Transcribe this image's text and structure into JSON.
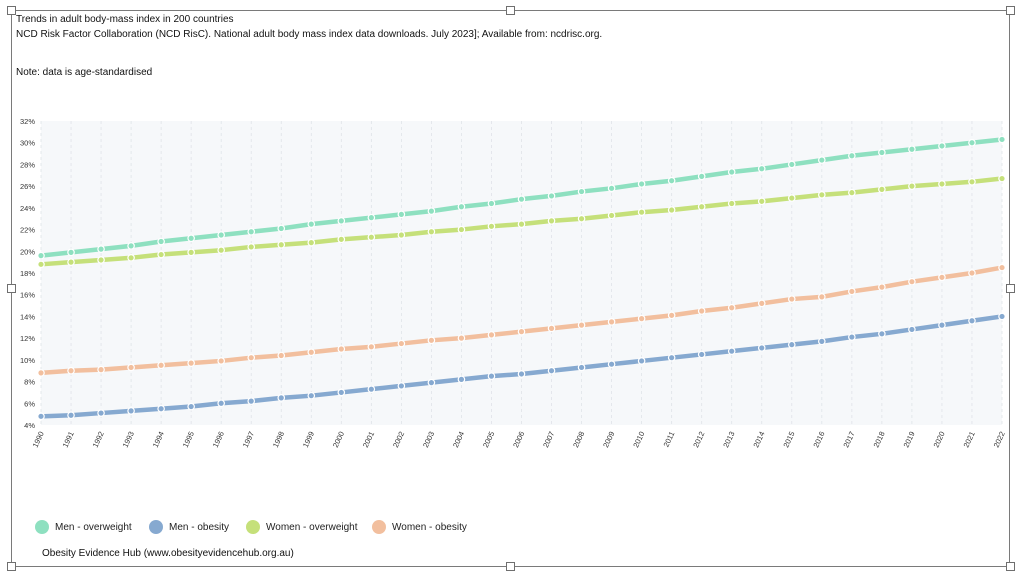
{
  "header": {
    "title": "Trends in adult body-mass index in 200 countries",
    "source": "NCD Risk Factor Collaboration (NCD RisC). National adult body mass index data downloads. July 2023]; Available from: ncdrisc.org.",
    "note": "Note: data is age-standardised"
  },
  "footer": {
    "credit": "Obesity Evidence Hub (www.obesityevidencehub.org.au)"
  },
  "chart_data": {
    "type": "line",
    "title": "Trends in adult body-mass index in 200 countries",
    "xlabel": "",
    "ylabel": "",
    "ylim": [
      4,
      32
    ],
    "y_ticks": [
      "4%",
      "6%",
      "8%",
      "10%",
      "12%",
      "14%",
      "16%",
      "18%",
      "20%",
      "22%",
      "24%",
      "26%",
      "28%",
      "30%",
      "32%"
    ],
    "grid": true,
    "legend_position": "bottom-left",
    "categories": [
      "1990",
      "1991",
      "1992",
      "1993",
      "1994",
      "1995",
      "1996",
      "1997",
      "1998",
      "1999",
      "2000",
      "2001",
      "2002",
      "2003",
      "2004",
      "2005",
      "2006",
      "2007",
      "2008",
      "2009",
      "2010",
      "2011",
      "2012",
      "2013",
      "2014",
      "2015",
      "2016",
      "2017",
      "2018",
      "2019",
      "2020",
      "2021",
      "2022"
    ],
    "series": [
      {
        "name": "Men - overweight",
        "color": "#8ee0c0",
        "values": [
          19.6,
          19.9,
          20.2,
          20.5,
          20.9,
          21.2,
          21.5,
          21.8,
          22.1,
          22.5,
          22.8,
          23.1,
          23.4,
          23.7,
          24.1,
          24.4,
          24.8,
          25.1,
          25.5,
          25.8,
          26.2,
          26.5,
          26.9,
          27.3,
          27.6,
          28.0,
          28.4,
          28.8,
          29.1,
          29.4,
          29.7,
          30.0,
          30.3
        ]
      },
      {
        "name": "Men - obesity",
        "color": "#86a9d0",
        "values": [
          4.8,
          4.9,
          5.1,
          5.3,
          5.5,
          5.7,
          6.0,
          6.2,
          6.5,
          6.7,
          7.0,
          7.3,
          7.6,
          7.9,
          8.2,
          8.5,
          8.7,
          9.0,
          9.3,
          9.6,
          9.9,
          10.2,
          10.5,
          10.8,
          11.1,
          11.4,
          11.7,
          12.1,
          12.4,
          12.8,
          13.2,
          13.6,
          14.0
        ]
      },
      {
        "name": "Women - overweight",
        "color": "#c5e07a",
        "values": [
          18.8,
          19.0,
          19.2,
          19.4,
          19.7,
          19.9,
          20.1,
          20.4,
          20.6,
          20.8,
          21.1,
          21.3,
          21.5,
          21.8,
          22.0,
          22.3,
          22.5,
          22.8,
          23.0,
          23.3,
          23.6,
          23.8,
          24.1,
          24.4,
          24.6,
          24.9,
          25.2,
          25.4,
          25.7,
          26.0,
          26.2,
          26.4,
          26.7
        ]
      },
      {
        "name": "Women - obesity",
        "color": "#f2bf9e",
        "values": [
          8.8,
          9.0,
          9.1,
          9.3,
          9.5,
          9.7,
          9.9,
          10.2,
          10.4,
          10.7,
          11.0,
          11.2,
          11.5,
          11.8,
          12.0,
          12.3,
          12.6,
          12.9,
          13.2,
          13.5,
          13.8,
          14.1,
          14.5,
          14.8,
          15.2,
          15.6,
          15.8,
          16.3,
          16.7,
          17.2,
          17.6,
          18.0,
          18.5
        ]
      }
    ]
  }
}
